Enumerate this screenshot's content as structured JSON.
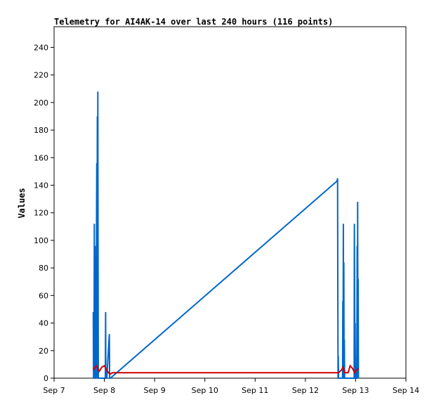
{
  "chart_data": {
    "type": "line",
    "title": "Telemetry for AI4AK-14 over last 240 hours (116 points)",
    "xlabel": "",
    "ylabel": "Values",
    "xlim": [
      0,
      7
    ],
    "ylim": [
      0,
      255
    ],
    "grid": false,
    "legend": "none",
    "x_ticks": [
      {
        "value": 0,
        "label": "Sep 7"
      },
      {
        "value": 1,
        "label": "Sep 8"
      },
      {
        "value": 2,
        "label": "Sep 9"
      },
      {
        "value": 3,
        "label": "Sep 10"
      },
      {
        "value": 4,
        "label": "Sep 11"
      },
      {
        "value": 5,
        "label": "Sep 12"
      },
      {
        "value": 6,
        "label": "Sep 13"
      },
      {
        "value": 7,
        "label": "Sep 14"
      }
    ],
    "y_ticks": [
      0,
      20,
      40,
      60,
      80,
      100,
      120,
      140,
      160,
      180,
      200,
      220,
      240
    ],
    "series": [
      {
        "color": "#0066cc",
        "points": [
          [
            0.78,
            48
          ],
          [
            0.785,
            0
          ],
          [
            0.79,
            48
          ],
          [
            0.795,
            0
          ],
          [
            0.8,
            112
          ],
          [
            0.805,
            0
          ],
          [
            0.81,
            0
          ],
          [
            0.815,
            96
          ],
          [
            0.82,
            0
          ],
          [
            0.825,
            50
          ],
          [
            0.83,
            0
          ],
          [
            0.835,
            88
          ],
          [
            0.84,
            0
          ],
          [
            0.845,
            121
          ],
          [
            0.85,
            156
          ],
          [
            0.855,
            48
          ],
          [
            0.86,
            190
          ],
          [
            0.865,
            0
          ],
          [
            0.87,
            208
          ],
          [
            0.875,
            104
          ],
          [
            0.88,
            0
          ],
          [
            0.885,
            0
          ],
          [
            0.89,
            0
          ],
          [
            1.02,
            0
          ],
          [
            1.025,
            48
          ],
          [
            1.03,
            0
          ],
          [
            1.05,
            0
          ],
          [
            1.1,
            32
          ],
          [
            1.105,
            0
          ],
          [
            1.12,
            0
          ],
          [
            5.63,
            143
          ],
          [
            5.64,
            145
          ],
          [
            5.645,
            72
          ],
          [
            5.65,
            0
          ],
          [
            5.655,
            16
          ],
          [
            5.66,
            0
          ],
          [
            5.74,
            0
          ],
          [
            5.745,
            56
          ],
          [
            5.75,
            0
          ],
          [
            5.755,
            112
          ],
          [
            5.76,
            0
          ],
          [
            5.765,
            84
          ],
          [
            5.77,
            0
          ],
          [
            5.775,
            28
          ],
          [
            5.78,
            0
          ],
          [
            5.97,
            0
          ],
          [
            5.975,
            112
          ],
          [
            5.98,
            60
          ],
          [
            5.985,
            0
          ],
          [
            5.99,
            40
          ],
          [
            5.995,
            0
          ],
          [
            6.02,
            0
          ],
          [
            6.025,
            20
          ],
          [
            6.03,
            96
          ],
          [
            6.035,
            0
          ],
          [
            6.04,
            128
          ],
          [
            6.045,
            16
          ],
          [
            6.05,
            72
          ],
          [
            6.055,
            0
          ]
        ]
      },
      {
        "color": "#cc0000",
        "points": [
          [
            0.78,
            6
          ],
          [
            0.84,
            9
          ],
          [
            0.87,
            7
          ],
          [
            0.9,
            5
          ],
          [
            0.95,
            8
          ],
          [
            1.0,
            9
          ],
          [
            1.05,
            6
          ],
          [
            1.08,
            4
          ],
          [
            1.12,
            3
          ],
          [
            1.16,
            4
          ],
          [
            5.63,
            4
          ],
          [
            5.66,
            4
          ],
          [
            5.72,
            6
          ],
          [
            5.75,
            8
          ],
          [
            5.78,
            4
          ],
          [
            5.85,
            4
          ],
          [
            5.89,
            9
          ],
          [
            5.94,
            7
          ],
          [
            5.98,
            4
          ],
          [
            6.02,
            6
          ],
          [
            6.06,
            7
          ]
        ]
      }
    ]
  }
}
